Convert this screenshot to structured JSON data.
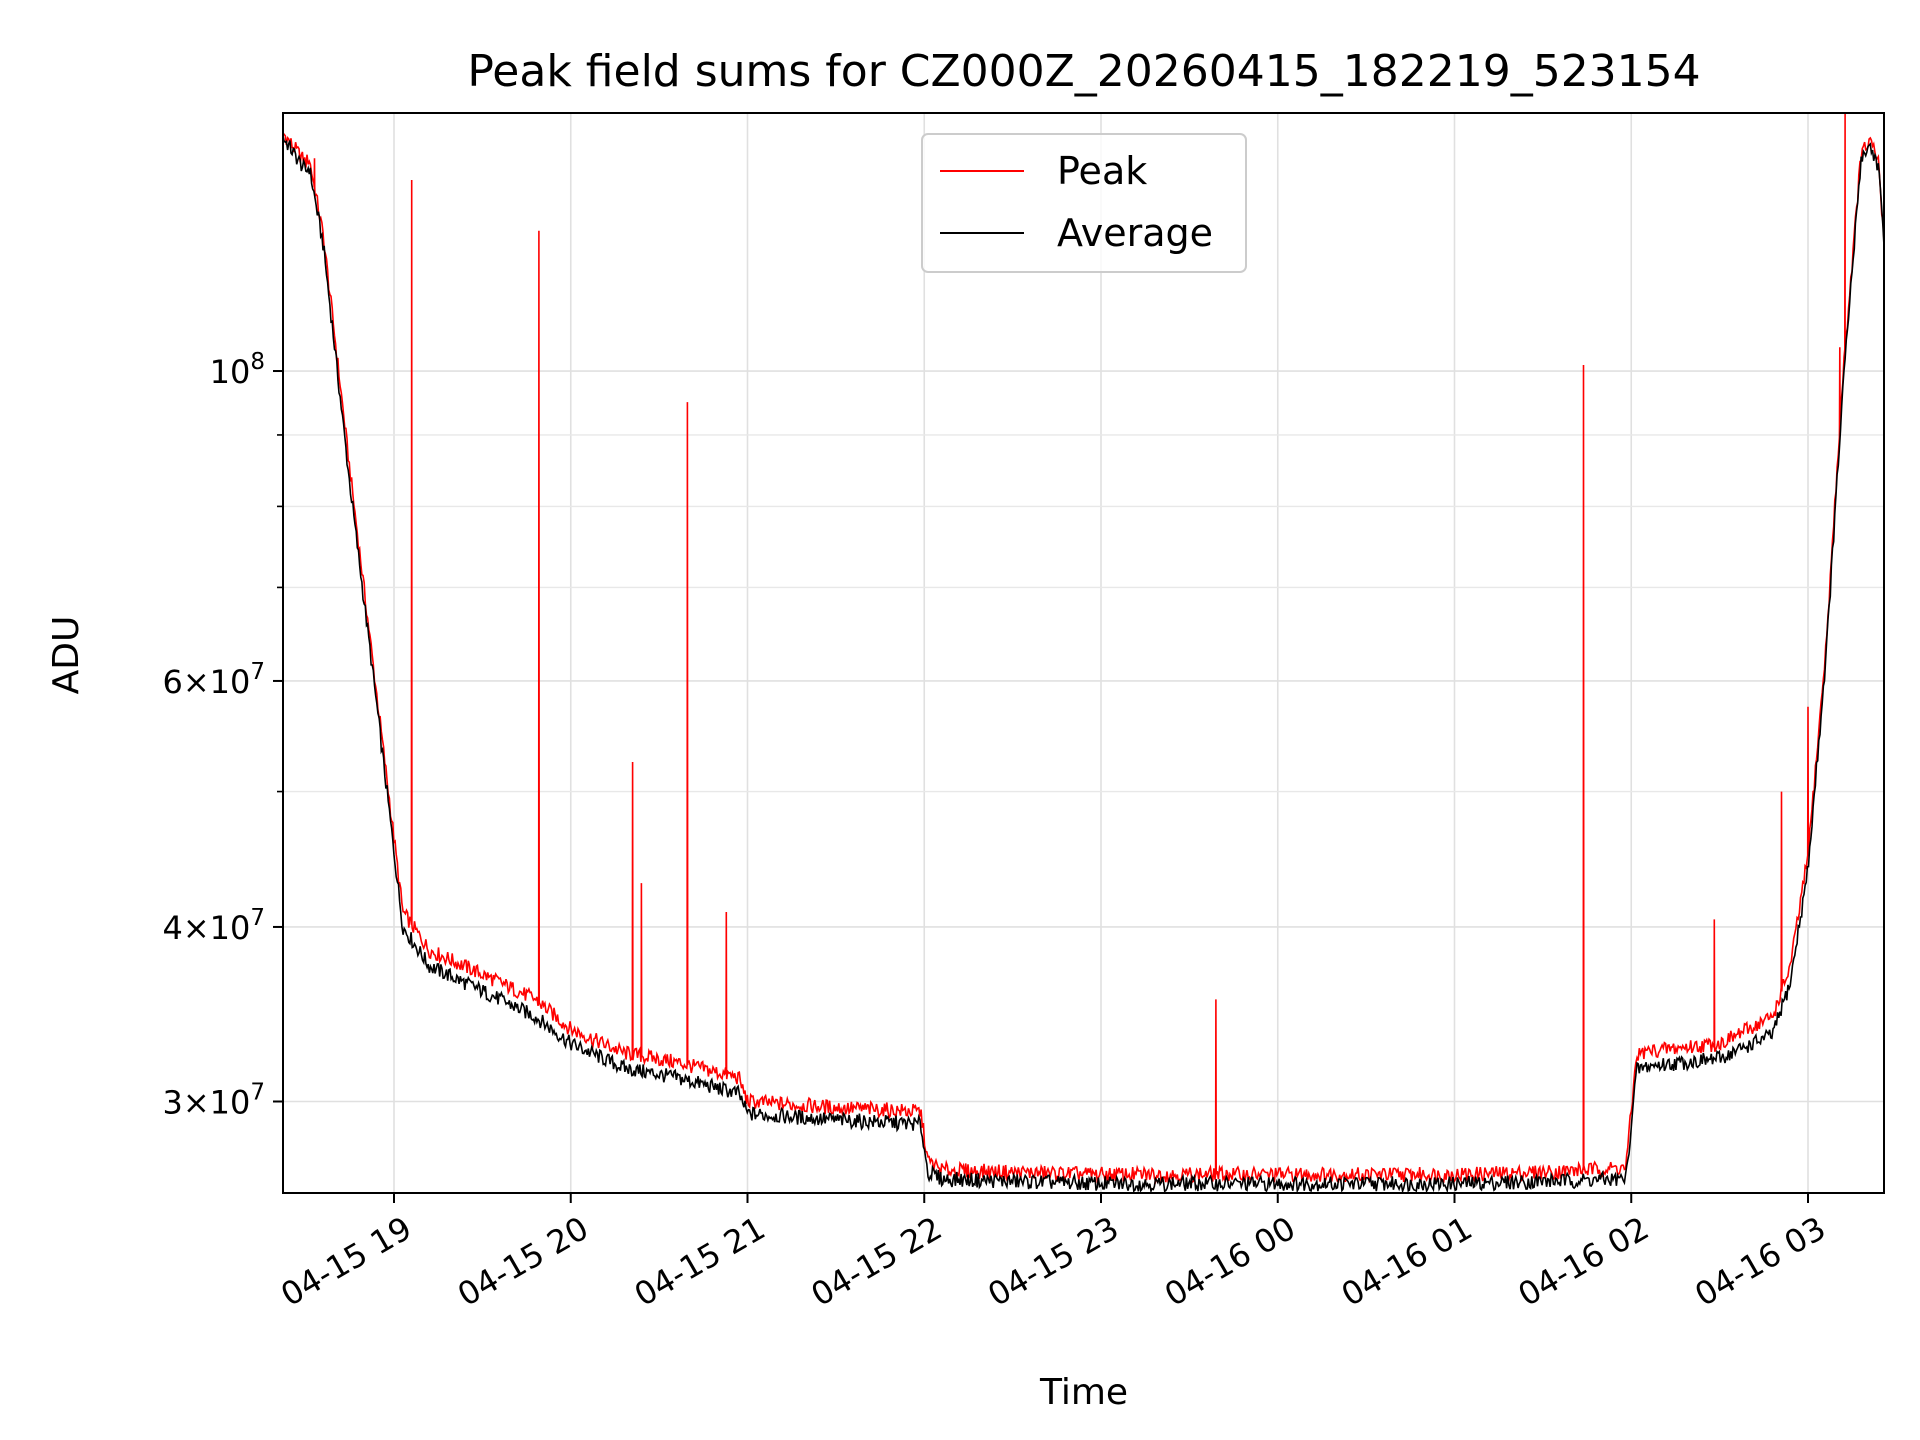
{
  "chart_data": {
    "type": "line",
    "title": "Peak field sums for CZ000Z_20260415_182219_523154",
    "xlabel": "Time",
    "ylabel": "ADU",
    "yscale": "log",
    "ylim": [
      25800000,
      153000000
    ],
    "xlim_hours": [
      18.372,
      27.43
    ],
    "x_unit": "hours since 2026-04-15 00:00",
    "grid": true,
    "legend_position": "upper center",
    "x_ticks": [
      {
        "value": 19,
        "label": "04-15 19"
      },
      {
        "value": 20,
        "label": "04-15 20"
      },
      {
        "value": 21,
        "label": "04-15 21"
      },
      {
        "value": 22,
        "label": "04-15 22"
      },
      {
        "value": 23,
        "label": "04-15 23"
      },
      {
        "value": 24,
        "label": "04-16 00"
      },
      {
        "value": 25,
        "label": "04-16 01"
      },
      {
        "value": 26,
        "label": "04-16 02"
      },
      {
        "value": 27,
        "label": "04-16 03"
      }
    ],
    "y_major_ticks": [
      {
        "value": 100000000,
        "base": "10",
        "exp": "8",
        "mult": ""
      },
      {
        "value": 60000000,
        "base": "10",
        "exp": "7",
        "mult": "6"
      },
      {
        "value": 40000000,
        "base": "10",
        "exp": "7",
        "mult": "4"
      },
      {
        "value": 30000000,
        "base": "10",
        "exp": "7",
        "mult": "3"
      }
    ],
    "y_minor_ticks": [
      50000000,
      70000000,
      80000000,
      90000000
    ],
    "series": [
      {
        "name": "Average",
        "color": "#000000",
        "x": [
          18.372,
          18.5,
          18.52,
          18.6,
          18.65,
          18.75,
          18.9,
          19.05,
          19.2,
          19.5,
          19.8,
          20.0,
          20.3,
          20.6,
          20.95,
          21.0,
          21.5,
          21.98,
          22.02,
          22.1,
          22.5,
          23.0,
          23.5,
          24.0,
          24.5,
          25.0,
          25.5,
          25.97,
          26.03,
          26.1,
          26.5,
          26.8,
          26.9,
          27.0,
          27.1,
          27.2,
          27.3,
          27.35,
          27.4,
          27.43
        ],
        "y": [
          147000000,
          139000000,
          140000000,
          123000000,
          108000000,
          83000000,
          58000000,
          40000000,
          37500000,
          36000000,
          34500000,
          33000000,
          31700000,
          31200000,
          30400000,
          29400000,
          29100000,
          28900000,
          26700000,
          26400000,
          26300000,
          26200000,
          26200000,
          26200000,
          26200000,
          26200000,
          26300000,
          26400000,
          31600000,
          31800000,
          32200000,
          33500000,
          36500000,
          44000000,
          62000000,
          98000000,
          142000000,
          145000000,
          140000000,
          122000000
        ]
      },
      {
        "name": "Peak",
        "color": "#ff0000",
        "x": [
          18.372,
          18.5,
          18.52,
          18.6,
          18.65,
          18.75,
          18.9,
          19.05,
          19.2,
          19.5,
          19.8,
          20.0,
          20.3,
          20.6,
          20.95,
          21.0,
          21.5,
          21.98,
          22.02,
          22.1,
          22.5,
          23.0,
          23.5,
          24.0,
          24.5,
          25.0,
          25.5,
          25.97,
          26.03,
          26.1,
          26.5,
          26.8,
          26.9,
          27.0,
          27.1,
          27.2,
          27.3,
          27.35,
          27.4,
          27.43
        ],
        "y": [
          148000000,
          141000000,
          142000000,
          125000000,
          110000000,
          85000000,
          59000000,
          41000000,
          38500000,
          37000000,
          35500000,
          33800000,
          32500000,
          32000000,
          31200000,
          30000000,
          29700000,
          29500000,
          27200000,
          26800000,
          26700000,
          26600000,
          26600000,
          26600000,
          26600000,
          26600000,
          26700000,
          26900000,
          32400000,
          32600000,
          33000000,
          34500000,
          37500000,
          45000000,
          63000000,
          100000000,
          143000000,
          146000000,
          141000000,
          123000000
        ],
        "spikes": [
          {
            "x": 18.55,
            "y": 142000000
          },
          {
            "x": 19.1,
            "y": 137000000
          },
          {
            "x": 19.82,
            "y": 126000000
          },
          {
            "x": 20.35,
            "y": 52500000
          },
          {
            "x": 20.4,
            "y": 43000000
          },
          {
            "x": 20.66,
            "y": 95000000
          },
          {
            "x": 20.88,
            "y": 41000000
          },
          {
            "x": 23.65,
            "y": 35500000
          },
          {
            "x": 25.73,
            "y": 101000000
          },
          {
            "x": 26.47,
            "y": 40500000
          },
          {
            "x": 26.85,
            "y": 50000000
          },
          {
            "x": 27.0,
            "y": 57500000
          },
          {
            "x": 27.18,
            "y": 104000000
          },
          {
            "x": 27.21,
            "y": 153000000
          }
        ]
      }
    ]
  }
}
